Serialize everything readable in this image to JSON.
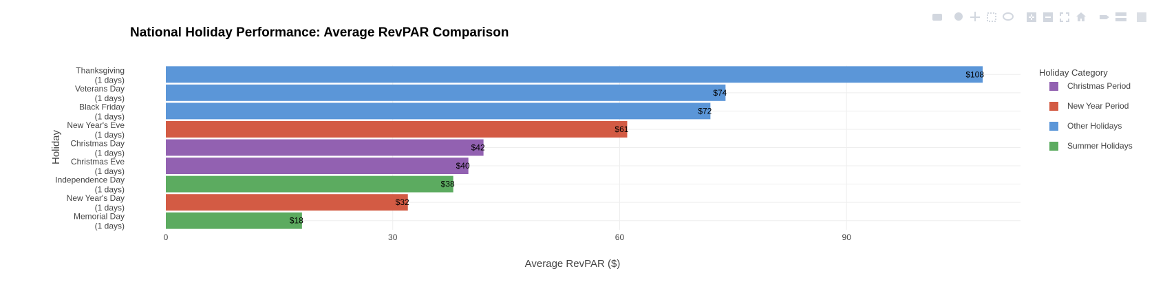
{
  "modebar": {
    "icons": [
      "camera-icon",
      "zoom-icon",
      "pan-icon",
      "box-select-icon",
      "lasso-icon",
      "zoom-in-icon",
      "zoom-out-icon",
      "autoscale-icon",
      "reset-axes-icon",
      "spike-lines-icon",
      "compare-hover-icon",
      "plotly-logo-icon"
    ]
  },
  "chart_data": {
    "type": "bar",
    "orientation": "horizontal",
    "title": "National Holiday Performance: Average RevPAR Comparison",
    "xlabel": "Average RevPAR ($)",
    "ylabel": "Holiday",
    "xlim": [
      0,
      113
    ],
    "x_ticks": [
      {
        "value": 0,
        "label": "0"
      },
      {
        "value": 30,
        "label": "30"
      },
      {
        "value": 60,
        "label": "60"
      },
      {
        "value": 90,
        "label": "90"
      }
    ],
    "grid": true,
    "legend": {
      "title": "Holiday Category",
      "placement": "right",
      "entries": [
        {
          "name": "Christmas Period",
          "color": "#9261b1"
        },
        {
          "name": "New Year Period",
          "color": "#d35b44"
        },
        {
          "name": "Other Holidays",
          "color": "#5b96d8"
        },
        {
          "name": "Summer Holidays",
          "color": "#5cab60"
        }
      ]
    },
    "bars": [
      {
        "line1": "Thanksgiving",
        "line2": "(1 days)",
        "value": 108,
        "label": "$108",
        "category": "Other Holidays",
        "color": "#5b96d8"
      },
      {
        "line1": "Veterans Day",
        "line2": "(1 days)",
        "value": 74,
        "label": "$74",
        "category": "Other Holidays",
        "color": "#5b96d8"
      },
      {
        "line1": "Black Friday",
        "line2": "(1 days)",
        "value": 72,
        "label": "$72",
        "category": "Other Holidays",
        "color": "#5b96d8"
      },
      {
        "line1": "New Year's Eve",
        "line2": "(1 days)",
        "value": 61,
        "label": "$61",
        "category": "New Year Period",
        "color": "#d35b44"
      },
      {
        "line1": "Christmas Day",
        "line2": "(1 days)",
        "value": 42,
        "label": "$42",
        "category": "Christmas Period",
        "color": "#9261b1"
      },
      {
        "line1": "Christmas Eve",
        "line2": "(1 days)",
        "value": 40,
        "label": "$40",
        "category": "Christmas Period",
        "color": "#9261b1"
      },
      {
        "line1": "Independence Day",
        "line2": "(1 days)",
        "value": 38,
        "label": "$38",
        "category": "Summer Holidays",
        "color": "#5cab60"
      },
      {
        "line1": "New Year's Day",
        "line2": "(1 days)",
        "value": 32,
        "label": "$32",
        "category": "New Year Period",
        "color": "#d35b44"
      },
      {
        "line1": "Memorial Day",
        "line2": "(1 days)",
        "value": 18,
        "label": "$18",
        "category": "Summer Holidays",
        "color": "#5cab60"
      }
    ]
  }
}
